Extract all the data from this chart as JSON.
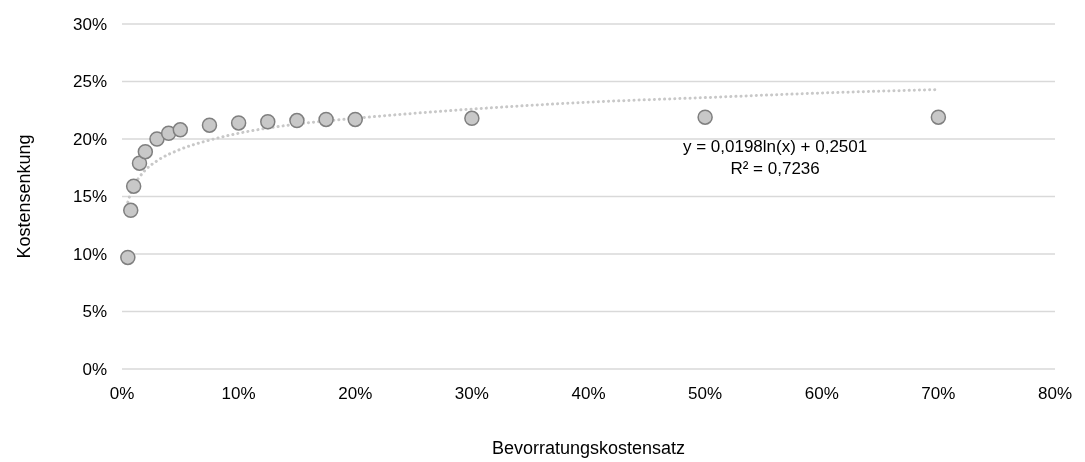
{
  "chart_data": {
    "type": "scatter",
    "xlabel": "Bevorratungskostensatz",
    "ylabel": "Kostensenkung",
    "xlim": [
      0,
      80
    ],
    "xticks": [
      {
        "value": 0,
        "label": "0%"
      },
      {
        "value": 10,
        "label": "10%"
      },
      {
        "value": 20,
        "label": "20%"
      },
      {
        "value": 30,
        "label": "30%"
      },
      {
        "value": 40,
        "label": "40%"
      },
      {
        "value": 50,
        "label": "50%"
      },
      {
        "value": 60,
        "label": "60%"
      },
      {
        "value": 70,
        "label": "70%"
      },
      {
        "value": 80,
        "label": "80%"
      }
    ],
    "ylim": [
      0,
      30
    ],
    "yticks": [
      {
        "value": 0,
        "label": "0%"
      },
      {
        "value": 5,
        "label": "5%"
      },
      {
        "value": 10,
        "label": "10%"
      },
      {
        "value": 15,
        "label": "15%"
      },
      {
        "value": 20,
        "label": "20%"
      },
      {
        "value": 25,
        "label": "25%"
      },
      {
        "value": 30,
        "label": "30%"
      }
    ],
    "grid": "y",
    "series": [
      {
        "type": "line",
        "color": "#c8c8c8",
        "line_style": "dotted",
        "x": [
          0.5,
          0.75,
          1,
          1.5,
          2,
          3,
          5,
          7.5,
          10,
          15,
          20,
          30,
          40,
          50,
          60,
          70
        ],
        "values": [
          14.5,
          15.3,
          15.9,
          16.7,
          17.3,
          18.1,
          19.1,
          19.9,
          20.5,
          21.3,
          21.8,
          22.6,
          23.2,
          23.6,
          24.0,
          24.3
        ]
      },
      {
        "color": "#c8c8c8",
        "marker": "circle",
        "x": [
          0.5,
          0.75,
          1,
          1.5,
          2,
          3,
          4,
          5,
          7.5,
          10,
          12.5,
          15,
          17.5,
          20,
          30,
          50,
          70
        ],
        "values": [
          9.7,
          13.8,
          15.9,
          17.9,
          18.9,
          20.0,
          20.5,
          20.8,
          21.2,
          21.4,
          21.5,
          21.6,
          21.7,
          21.7,
          21.8,
          21.9,
          21.9
        ]
      }
    ],
    "annotations": [
      "y = 0,0198ln(x) + 0,2501",
      "R² = 0,7236"
    ]
  }
}
